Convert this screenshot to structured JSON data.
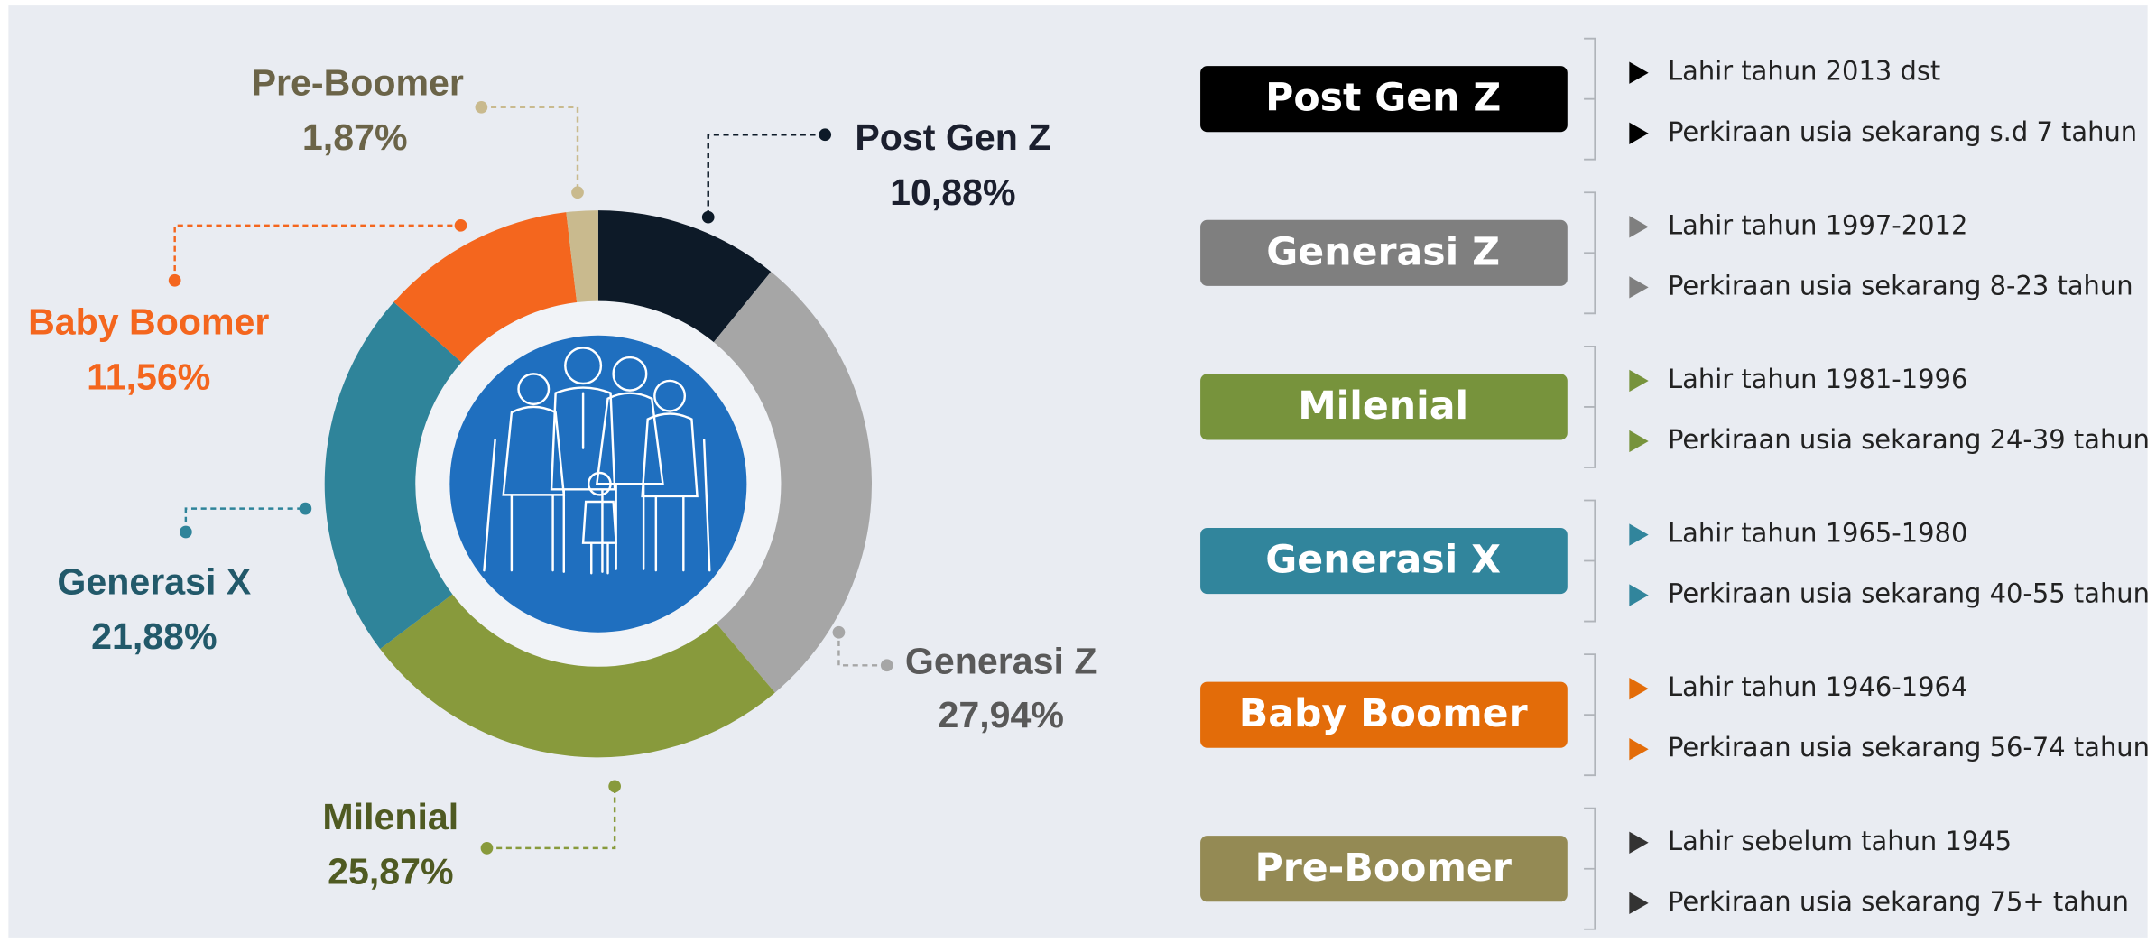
{
  "chart_data": {
    "type": "pie",
    "categories": [
      "Post Gen Z",
      "Generasi Z",
      "Milenial",
      "Generasi X",
      "Baby Boomer",
      "Pre-Boomer"
    ],
    "values": [
      10.88,
      27.94,
      25.87,
      21.88,
      11.56,
      1.87
    ],
    "value_labels": [
      "10,88%",
      "27,94%",
      "25,87%",
      "21,88%",
      "11,56%",
      "1,87%"
    ],
    "colors": [
      "#0d1a28",
      "#a6a6a6",
      "#889a3c",
      "#2f849a",
      "#f4661e",
      "#c9ba8e"
    ]
  },
  "legend_panel": [
    {
      "title": "Post Gen Z",
      "color": "#000000",
      "items": [
        "Lahir tahun 2013 dst",
        "Perkiraan usia sekarang s.d 7 tahun"
      ]
    },
    {
      "title": "Generasi Z",
      "color": "#7f7f7f",
      "items": [
        "Lahir tahun 1997-2012",
        "Perkiraan usia sekarang 8-23 tahun"
      ]
    },
    {
      "title": "Milenial",
      "color": "#77933c",
      "items": [
        "Lahir tahun 1981-1996",
        "Perkiraan usia sekarang 24-39 tahun"
      ]
    },
    {
      "title": "Generasi X",
      "color": "#31859c",
      "items": [
        "Lahir tahun 1965-1980",
        "Perkiraan usia sekarang 40-55 tahun"
      ]
    },
    {
      "title": "Baby Boomer",
      "color": "#e36c09",
      "items": [
        "Lahir tahun 1946-1964",
        "Perkiraan usia sekarang 56-74 tahun"
      ]
    },
    {
      "title": "Pre-Boomer",
      "color": "#948a54",
      "items": [
        "Lahir sebelum tahun 1945",
        "Perkiraan usia sekarang 75+ tahun"
      ]
    }
  ]
}
